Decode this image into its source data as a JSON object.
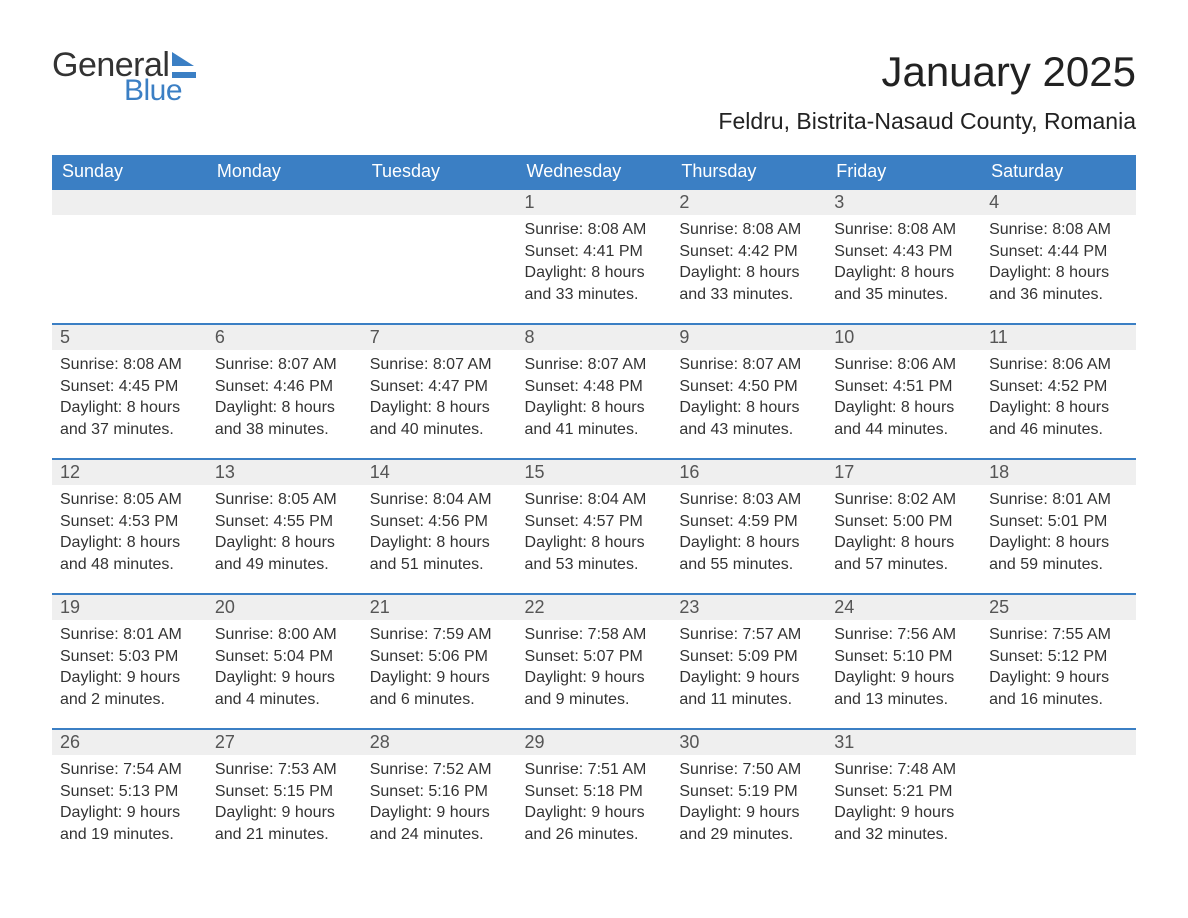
{
  "logo": {
    "line1": "General",
    "line2": "Blue"
  },
  "title": "January 2025",
  "location": "Feldru, Bistrita-Nasaud County, Romania",
  "colors": {
    "header_bg": "#3b7fc4",
    "header_text": "#ffffff",
    "daynum_bg": "#efefef",
    "daynum_border": "#3b7fc4",
    "text": "#333333",
    "logo_accent": "#3b7fc4"
  },
  "fonts": {
    "title_pt": 42,
    "location_pt": 23,
    "header_pt": 18,
    "daynum_pt": 18,
    "body_pt": 16
  },
  "day_headers": [
    "Sunday",
    "Monday",
    "Tuesday",
    "Wednesday",
    "Thursday",
    "Friday",
    "Saturday"
  ],
  "weeks": [
    [
      null,
      null,
      null,
      {
        "day": "1",
        "sunrise": "Sunrise: 8:08 AM",
        "sunset": "Sunset: 4:41 PM",
        "daylight1": "Daylight: 8 hours",
        "daylight2": "and 33 minutes."
      },
      {
        "day": "2",
        "sunrise": "Sunrise: 8:08 AM",
        "sunset": "Sunset: 4:42 PM",
        "daylight1": "Daylight: 8 hours",
        "daylight2": "and 33 minutes."
      },
      {
        "day": "3",
        "sunrise": "Sunrise: 8:08 AM",
        "sunset": "Sunset: 4:43 PM",
        "daylight1": "Daylight: 8 hours",
        "daylight2": "and 35 minutes."
      },
      {
        "day": "4",
        "sunrise": "Sunrise: 8:08 AM",
        "sunset": "Sunset: 4:44 PM",
        "daylight1": "Daylight: 8 hours",
        "daylight2": "and 36 minutes."
      }
    ],
    [
      {
        "day": "5",
        "sunrise": "Sunrise: 8:08 AM",
        "sunset": "Sunset: 4:45 PM",
        "daylight1": "Daylight: 8 hours",
        "daylight2": "and 37 minutes."
      },
      {
        "day": "6",
        "sunrise": "Sunrise: 8:07 AM",
        "sunset": "Sunset: 4:46 PM",
        "daylight1": "Daylight: 8 hours",
        "daylight2": "and 38 minutes."
      },
      {
        "day": "7",
        "sunrise": "Sunrise: 8:07 AM",
        "sunset": "Sunset: 4:47 PM",
        "daylight1": "Daylight: 8 hours",
        "daylight2": "and 40 minutes."
      },
      {
        "day": "8",
        "sunrise": "Sunrise: 8:07 AM",
        "sunset": "Sunset: 4:48 PM",
        "daylight1": "Daylight: 8 hours",
        "daylight2": "and 41 minutes."
      },
      {
        "day": "9",
        "sunrise": "Sunrise: 8:07 AM",
        "sunset": "Sunset: 4:50 PM",
        "daylight1": "Daylight: 8 hours",
        "daylight2": "and 43 minutes."
      },
      {
        "day": "10",
        "sunrise": "Sunrise: 8:06 AM",
        "sunset": "Sunset: 4:51 PM",
        "daylight1": "Daylight: 8 hours",
        "daylight2": "and 44 minutes."
      },
      {
        "day": "11",
        "sunrise": "Sunrise: 8:06 AM",
        "sunset": "Sunset: 4:52 PM",
        "daylight1": "Daylight: 8 hours",
        "daylight2": "and 46 minutes."
      }
    ],
    [
      {
        "day": "12",
        "sunrise": "Sunrise: 8:05 AM",
        "sunset": "Sunset: 4:53 PM",
        "daylight1": "Daylight: 8 hours",
        "daylight2": "and 48 minutes."
      },
      {
        "day": "13",
        "sunrise": "Sunrise: 8:05 AM",
        "sunset": "Sunset: 4:55 PM",
        "daylight1": "Daylight: 8 hours",
        "daylight2": "and 49 minutes."
      },
      {
        "day": "14",
        "sunrise": "Sunrise: 8:04 AM",
        "sunset": "Sunset: 4:56 PM",
        "daylight1": "Daylight: 8 hours",
        "daylight2": "and 51 minutes."
      },
      {
        "day": "15",
        "sunrise": "Sunrise: 8:04 AM",
        "sunset": "Sunset: 4:57 PM",
        "daylight1": "Daylight: 8 hours",
        "daylight2": "and 53 minutes."
      },
      {
        "day": "16",
        "sunrise": "Sunrise: 8:03 AM",
        "sunset": "Sunset: 4:59 PM",
        "daylight1": "Daylight: 8 hours",
        "daylight2": "and 55 minutes."
      },
      {
        "day": "17",
        "sunrise": "Sunrise: 8:02 AM",
        "sunset": "Sunset: 5:00 PM",
        "daylight1": "Daylight: 8 hours",
        "daylight2": "and 57 minutes."
      },
      {
        "day": "18",
        "sunrise": "Sunrise: 8:01 AM",
        "sunset": "Sunset: 5:01 PM",
        "daylight1": "Daylight: 8 hours",
        "daylight2": "and 59 minutes."
      }
    ],
    [
      {
        "day": "19",
        "sunrise": "Sunrise: 8:01 AM",
        "sunset": "Sunset: 5:03 PM",
        "daylight1": "Daylight: 9 hours",
        "daylight2": "and 2 minutes."
      },
      {
        "day": "20",
        "sunrise": "Sunrise: 8:00 AM",
        "sunset": "Sunset: 5:04 PM",
        "daylight1": "Daylight: 9 hours",
        "daylight2": "and 4 minutes."
      },
      {
        "day": "21",
        "sunrise": "Sunrise: 7:59 AM",
        "sunset": "Sunset: 5:06 PM",
        "daylight1": "Daylight: 9 hours",
        "daylight2": "and 6 minutes."
      },
      {
        "day": "22",
        "sunrise": "Sunrise: 7:58 AM",
        "sunset": "Sunset: 5:07 PM",
        "daylight1": "Daylight: 9 hours",
        "daylight2": "and 9 minutes."
      },
      {
        "day": "23",
        "sunrise": "Sunrise: 7:57 AM",
        "sunset": "Sunset: 5:09 PM",
        "daylight1": "Daylight: 9 hours",
        "daylight2": "and 11 minutes."
      },
      {
        "day": "24",
        "sunrise": "Sunrise: 7:56 AM",
        "sunset": "Sunset: 5:10 PM",
        "daylight1": "Daylight: 9 hours",
        "daylight2": "and 13 minutes."
      },
      {
        "day": "25",
        "sunrise": "Sunrise: 7:55 AM",
        "sunset": "Sunset: 5:12 PM",
        "daylight1": "Daylight: 9 hours",
        "daylight2": "and 16 minutes."
      }
    ],
    [
      {
        "day": "26",
        "sunrise": "Sunrise: 7:54 AM",
        "sunset": "Sunset: 5:13 PM",
        "daylight1": "Daylight: 9 hours",
        "daylight2": "and 19 minutes."
      },
      {
        "day": "27",
        "sunrise": "Sunrise: 7:53 AM",
        "sunset": "Sunset: 5:15 PM",
        "daylight1": "Daylight: 9 hours",
        "daylight2": "and 21 minutes."
      },
      {
        "day": "28",
        "sunrise": "Sunrise: 7:52 AM",
        "sunset": "Sunset: 5:16 PM",
        "daylight1": "Daylight: 9 hours",
        "daylight2": "and 24 minutes."
      },
      {
        "day": "29",
        "sunrise": "Sunrise: 7:51 AM",
        "sunset": "Sunset: 5:18 PM",
        "daylight1": "Daylight: 9 hours",
        "daylight2": "and 26 minutes."
      },
      {
        "day": "30",
        "sunrise": "Sunrise: 7:50 AM",
        "sunset": "Sunset: 5:19 PM",
        "daylight1": "Daylight: 9 hours",
        "daylight2": "and 29 minutes."
      },
      {
        "day": "31",
        "sunrise": "Sunrise: 7:48 AM",
        "sunset": "Sunset: 5:21 PM",
        "daylight1": "Daylight: 9 hours",
        "daylight2": "and 32 minutes."
      },
      null
    ]
  ]
}
